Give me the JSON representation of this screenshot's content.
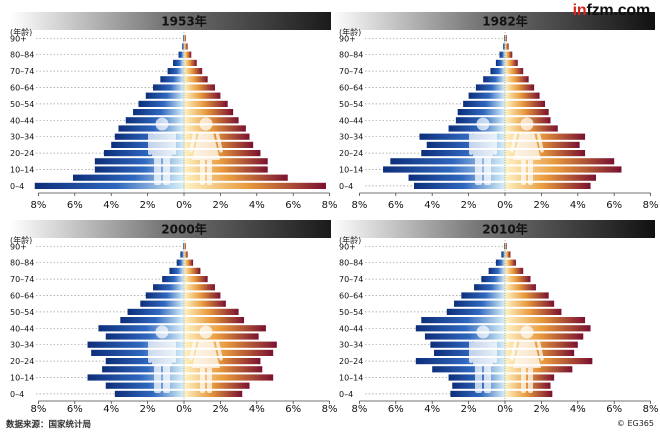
{
  "brand": {
    "accent": "in",
    "rest": "fzm.com"
  },
  "source_text": "数据来源：国家统计局",
  "credit_text": "© EG365",
  "colors": {
    "male_dark": "#0d2e7a",
    "male_mid": "#2f67bf",
    "male_light": "#d9f1f8",
    "female_light": "#fff4c6",
    "female_mid": "#e89a3c",
    "female_dark": "#7a1030"
  },
  "chart_data": [
    {
      "type": "bar",
      "title": "1953年",
      "ylabel": "(年龄)",
      "age_groups": [
        "0–4",
        "5–9",
        "10–14",
        "15–19",
        "20–24",
        "25–29",
        "30–34",
        "35–39",
        "40–44",
        "45–49",
        "50–54",
        "55–59",
        "60–64",
        "65–69",
        "70–74",
        "75–79",
        "80–84",
        "85–89",
        "90+"
      ],
      "age_tick_labels": [
        "90+",
        "80–84",
        "70–74",
        "60–64",
        "50–54",
        "40–44",
        "30–34",
        "20–24",
        "10–14",
        "0–4"
      ],
      "x_tick_labels": [
        "8%",
        "6%",
        "4%",
        "2%",
        "0%",
        "2%",
        "4%",
        "6%",
        "8%"
      ],
      "xlim": [
        0,
        8
      ],
      "series": [
        {
          "name": "男",
          "values": [
            8.2,
            6.1,
            4.9,
            4.9,
            4.4,
            4.0,
            3.8,
            3.6,
            3.2,
            2.8,
            2.5,
            2.1,
            1.7,
            1.3,
            0.9,
            0.6,
            0.3,
            0.1,
            0.05
          ]
        },
        {
          "name": "女",
          "values": [
            7.8,
            5.7,
            4.6,
            4.6,
            4.2,
            3.8,
            3.6,
            3.4,
            3.0,
            2.7,
            2.4,
            2.0,
            1.7,
            1.3,
            1.0,
            0.7,
            0.4,
            0.2,
            0.1
          ]
        }
      ]
    },
    {
      "type": "bar",
      "title": "1982年",
      "ylabel": "(年龄)",
      "age_groups": [
        "0–4",
        "5–9",
        "10–14",
        "15–19",
        "20–24",
        "25–29",
        "30–34",
        "35–39",
        "40–44",
        "45–49",
        "50–54",
        "55–59",
        "60–64",
        "65–69",
        "70–74",
        "75–79",
        "80–84",
        "85–89",
        "90+"
      ],
      "age_tick_labels": [
        "90+",
        "80–84",
        "70–74",
        "60–64",
        "50–54",
        "40–44",
        "30–34",
        "20–24",
        "10–14",
        "0–4"
      ],
      "x_tick_labels": [
        "8%",
        "6%",
        "4%",
        "2%",
        "0%",
        "2%",
        "4%",
        "6%",
        "8%"
      ],
      "xlim": [
        0,
        8
      ],
      "series": [
        {
          "name": "男",
          "values": [
            5.0,
            5.3,
            6.7,
            6.3,
            4.6,
            4.3,
            4.7,
            3.1,
            2.7,
            2.6,
            2.3,
            2.0,
            1.6,
            1.2,
            0.8,
            0.5,
            0.3,
            0.1,
            0.05
          ]
        },
        {
          "name": "女",
          "values": [
            4.7,
            5.0,
            6.4,
            6.0,
            4.4,
            4.1,
            4.4,
            2.9,
            2.5,
            2.4,
            2.2,
            1.9,
            1.6,
            1.3,
            1.0,
            0.7,
            0.4,
            0.2,
            0.1
          ]
        }
      ]
    },
    {
      "type": "bar",
      "title": "2000年",
      "ylabel": "(年龄)",
      "age_groups": [
        "0–4",
        "5–9",
        "10–14",
        "15–19",
        "20–24",
        "25–29",
        "30–34",
        "35–39",
        "40–44",
        "45–49",
        "50–54",
        "55–59",
        "60–64",
        "65–69",
        "70–74",
        "75–79",
        "80–84",
        "85–89",
        "90+"
      ],
      "age_tick_labels": [
        "90+",
        "80–84",
        "70–74",
        "60–64",
        "50–54",
        "40–44",
        "30–34",
        "20–24",
        "10–14",
        "0–4"
      ],
      "x_tick_labels": [
        "8%",
        "6%",
        "4%",
        "2%",
        "0%",
        "2%",
        "4%",
        "6%",
        "8%"
      ],
      "xlim": [
        0,
        8
      ],
      "series": [
        {
          "name": "男",
          "values": [
            3.8,
            4.3,
            5.3,
            4.5,
            4.3,
            5.1,
            5.3,
            4.3,
            4.7,
            3.5,
            3.1,
            2.4,
            2.1,
            1.7,
            1.2,
            0.8,
            0.4,
            0.2,
            0.05
          ]
        },
        {
          "name": "女",
          "values": [
            3.2,
            3.6,
            4.9,
            4.3,
            4.2,
            4.9,
            5.1,
            4.1,
            4.5,
            3.3,
            3.0,
            2.3,
            2.0,
            1.7,
            1.3,
            0.9,
            0.5,
            0.2,
            0.1
          ]
        }
      ]
    },
    {
      "type": "bar",
      "title": "2010年",
      "ylabel": "(年龄)",
      "age_groups": [
        "0–4",
        "5–9",
        "10–14",
        "15–19",
        "20–24",
        "25–29",
        "30–34",
        "35–39",
        "40–44",
        "45–49",
        "50–54",
        "55–59",
        "60–64",
        "65–69",
        "70–74",
        "75–79",
        "80–84",
        "85–89",
        "90+"
      ],
      "age_tick_labels": [
        "90+",
        "80–84",
        "70–74",
        "60–64",
        "50–54",
        "40–44",
        "30–34",
        "20–24",
        "10–14",
        "0–4"
      ],
      "x_tick_labels": [
        "8%",
        "6%",
        "4%",
        "2%",
        "0%",
        "2%",
        "4%",
        "6%",
        "8%"
      ],
      "xlim": [
        0,
        8
      ],
      "series": [
        {
          "name": "男",
          "values": [
            3.0,
            2.9,
            3.1,
            4.0,
            4.9,
            3.9,
            4.1,
            4.4,
            4.9,
            4.6,
            3.2,
            2.8,
            2.4,
            1.7,
            1.3,
            0.9,
            0.5,
            0.2,
            0.05
          ]
        },
        {
          "name": "女",
          "values": [
            2.6,
            2.5,
            2.7,
            3.7,
            4.8,
            3.8,
            4.0,
            4.3,
            4.7,
            4.4,
            3.1,
            2.7,
            2.4,
            1.7,
            1.4,
            1.0,
            0.6,
            0.3,
            0.1
          ]
        }
      ]
    }
  ]
}
